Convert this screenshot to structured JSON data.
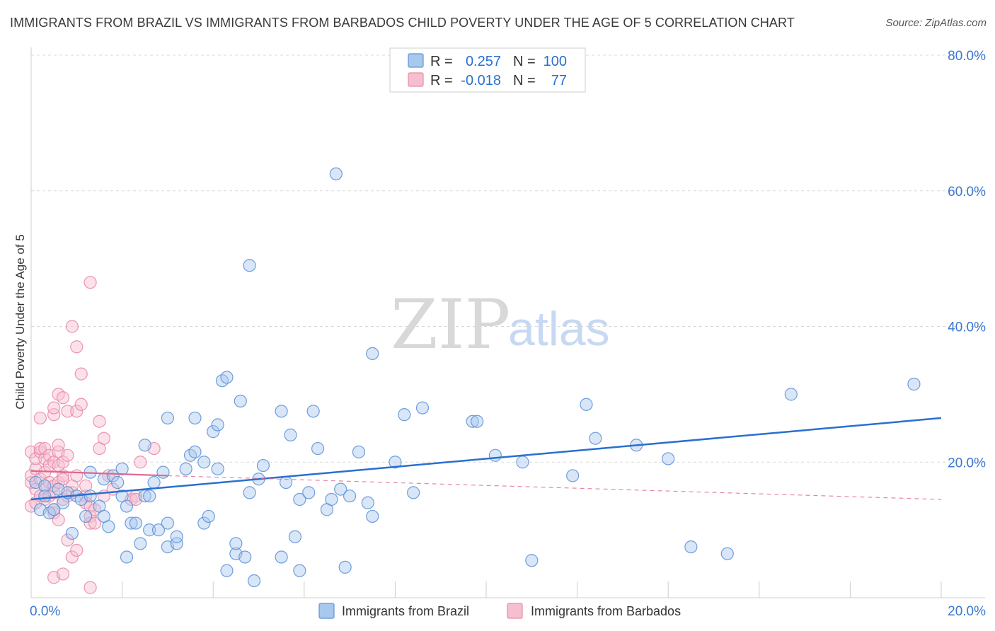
{
  "title": "IMMIGRANTS FROM BRAZIL VS IMMIGRANTS FROM BARBADOS CHILD POVERTY UNDER THE AGE OF 5 CORRELATION CHART",
  "source": "Source: ZipAtlas.com",
  "watermark": {
    "zip": "ZIP",
    "atlas": "atlas"
  },
  "legend": {
    "r_label": "R =",
    "n_label": "N =",
    "series": [
      {
        "name": "Immigrants from Brazil",
        "r": "0.257",
        "n": "100"
      },
      {
        "name": "Immigrants from Barbados",
        "r": "-0.018",
        "n": "77"
      }
    ]
  },
  "colors": {
    "brazil_fill": "#a9c8ee",
    "brazil_stroke": "#5f93d8",
    "brazil_line": "#2a6fd0",
    "barbados_fill": "#f6bfd0",
    "barbados_stroke": "#e98aa8",
    "barbados_line": "#e06690",
    "grid": "#d9d9d9",
    "tick_text": "#3b78d0"
  },
  "chart_data": {
    "type": "scatter",
    "title": "IMMIGRANTS FROM BRAZIL VS IMMIGRANTS FROM BARBADOS CHILD POVERTY UNDER THE AGE OF 5 CORRELATION CHART",
    "xlabel": "",
    "ylabel": "Child Poverty Under the Age of 5",
    "xlim": [
      0,
      20
    ],
    "ylim": [
      0,
      80
    ],
    "x_tick_labels": [
      "0.0%",
      "20.0%"
    ],
    "y_ticks": [
      20,
      40,
      60,
      80
    ],
    "y_tick_labels": [
      "20.0%",
      "40.0%",
      "60.0%",
      "80.0%"
    ],
    "grid": true,
    "legend_position": "top-center",
    "series": [
      {
        "name": "Immigrants from Brazil",
        "r": 0.257,
        "n": 100,
        "trend": {
          "x": [
            0,
            20
          ],
          "y": [
            14.5,
            26.5
          ],
          "style": "solid"
        },
        "points": [
          [
            0.1,
            17.0
          ],
          [
            0.2,
            13.0
          ],
          [
            0.3,
            16.5
          ],
          [
            0.4,
            12.5
          ],
          [
            0.5,
            13.0
          ],
          [
            0.6,
            16.0
          ],
          [
            0.7,
            14.0
          ],
          [
            0.8,
            15.5
          ],
          [
            0.9,
            9.5
          ],
          [
            1.0,
            15.0
          ],
          [
            1.1,
            14.5
          ],
          [
            1.2,
            12.0
          ],
          [
            1.3,
            15.0
          ],
          [
            1.3,
            18.5
          ],
          [
            1.5,
            13.5
          ],
          [
            1.6,
            17.5
          ],
          [
            1.7,
            10.5
          ],
          [
            1.8,
            18.0
          ],
          [
            1.9,
            17.0
          ],
          [
            2.0,
            15.0
          ],
          [
            2.0,
            19.0
          ],
          [
            2.1,
            6.0
          ],
          [
            2.2,
            11.0
          ],
          [
            2.3,
            11.0
          ],
          [
            2.4,
            8.0
          ],
          [
            2.5,
            15.0
          ],
          [
            2.5,
            22.5
          ],
          [
            2.6,
            15.0
          ],
          [
            2.6,
            10.0
          ],
          [
            2.7,
            17.0
          ],
          [
            2.8,
            10.0
          ],
          [
            2.9,
            18.5
          ],
          [
            3.0,
            11.0
          ],
          [
            3.0,
            26.5
          ],
          [
            3.0,
            7.5
          ],
          [
            3.2,
            8.0
          ],
          [
            3.2,
            9.0
          ],
          [
            3.4,
            19.0
          ],
          [
            3.5,
            21.0
          ],
          [
            3.6,
            21.5
          ],
          [
            3.6,
            26.5
          ],
          [
            3.8,
            20.0
          ],
          [
            3.8,
            11.0
          ],
          [
            3.9,
            12.0
          ],
          [
            4.0,
            24.5
          ],
          [
            4.1,
            25.5
          ],
          [
            4.1,
            19.0
          ],
          [
            4.2,
            32.0
          ],
          [
            4.3,
            4.0
          ],
          [
            4.3,
            32.5
          ],
          [
            4.5,
            6.5
          ],
          [
            4.5,
            8.0
          ],
          [
            4.6,
            29.0
          ],
          [
            4.7,
            6.0
          ],
          [
            4.8,
            15.5
          ],
          [
            4.8,
            49.0
          ],
          [
            4.9,
            2.5
          ],
          [
            5.0,
            17.5
          ],
          [
            5.1,
            19.5
          ],
          [
            5.5,
            6.0
          ],
          [
            5.5,
            27.5
          ],
          [
            5.6,
            17.0
          ],
          [
            5.7,
            24.0
          ],
          [
            5.8,
            9.0
          ],
          [
            5.9,
            4.0
          ],
          [
            5.9,
            14.5
          ],
          [
            6.1,
            15.5
          ],
          [
            6.2,
            27.5
          ],
          [
            6.3,
            22.0
          ],
          [
            6.5,
            13.0
          ],
          [
            6.6,
            14.5
          ],
          [
            6.7,
            62.5
          ],
          [
            6.8,
            16.0
          ],
          [
            6.9,
            4.5
          ],
          [
            7.0,
            15.0
          ],
          [
            7.2,
            21.5
          ],
          [
            7.4,
            14.0
          ],
          [
            7.5,
            12.0
          ],
          [
            7.5,
            36.0
          ],
          [
            8.0,
            20.0
          ],
          [
            8.2,
            27.0
          ],
          [
            8.4,
            15.5
          ],
          [
            8.6,
            28.0
          ],
          [
            9.7,
            26.0
          ],
          [
            9.8,
            26.0
          ],
          [
            10.2,
            21.0
          ],
          [
            10.8,
            20.0
          ],
          [
            11.0,
            5.5
          ],
          [
            11.9,
            18.0
          ],
          [
            12.2,
            28.5
          ],
          [
            12.4,
            23.5
          ],
          [
            13.3,
            22.5
          ],
          [
            14.0,
            20.5
          ],
          [
            14.5,
            7.5
          ],
          [
            15.3,
            6.5
          ],
          [
            16.7,
            30.0
          ],
          [
            19.4,
            31.5
          ],
          [
            0.3,
            15.0
          ],
          [
            1.6,
            12.0
          ],
          [
            2.1,
            13.5
          ]
        ]
      },
      {
        "name": "Immigrants from Barbados",
        "r": -0.018,
        "n": 77,
        "trend": {
          "x": [
            0,
            3
          ],
          "y": [
            18.7,
            18.0
          ],
          "style": "solid",
          "extension": {
            "x": [
              3,
              20
            ],
            "y": [
              18.0,
              14.5
            ],
            "style": "dashed"
          }
        },
        "points": [
          [
            0.0,
            13.5
          ],
          [
            0.0,
            17.0
          ],
          [
            0.0,
            18.0
          ],
          [
            0.0,
            21.5
          ],
          [
            0.1,
            14.0
          ],
          [
            0.1,
            16.0
          ],
          [
            0.1,
            19.0
          ],
          [
            0.1,
            20.5
          ],
          [
            0.2,
            15.0
          ],
          [
            0.2,
            17.5
          ],
          [
            0.2,
            21.5
          ],
          [
            0.2,
            26.5
          ],
          [
            0.2,
            22.0
          ],
          [
            0.3,
            14.5
          ],
          [
            0.3,
            16.5
          ],
          [
            0.3,
            18.5
          ],
          [
            0.3,
            20.5
          ],
          [
            0.3,
            22.0
          ],
          [
            0.4,
            15.0
          ],
          [
            0.4,
            17.0
          ],
          [
            0.4,
            19.5
          ],
          [
            0.4,
            21.0
          ],
          [
            0.5,
            15.5
          ],
          [
            0.5,
            12.5
          ],
          [
            0.5,
            13.0
          ],
          [
            0.5,
            16.5
          ],
          [
            0.5,
            20.0
          ],
          [
            0.5,
            27.0
          ],
          [
            0.5,
            28.0
          ],
          [
            0.5,
            3.0
          ],
          [
            0.6,
            17.0
          ],
          [
            0.6,
            21.5
          ],
          [
            0.6,
            22.5
          ],
          [
            0.6,
            19.5
          ],
          [
            0.6,
            30.0
          ],
          [
            0.6,
            11.5
          ],
          [
            0.7,
            3.5
          ],
          [
            0.7,
            14.5
          ],
          [
            0.7,
            18.0
          ],
          [
            0.7,
            20.0
          ],
          [
            0.7,
            29.5
          ],
          [
            0.7,
            17.5
          ],
          [
            0.8,
            15.0
          ],
          [
            0.8,
            21.0
          ],
          [
            0.8,
            27.5
          ],
          [
            0.8,
            8.5
          ],
          [
            0.9,
            6.0
          ],
          [
            0.9,
            15.5
          ],
          [
            0.9,
            16.5
          ],
          [
            0.9,
            40.0
          ],
          [
            1.0,
            7.0
          ],
          [
            1.0,
            37.0
          ],
          [
            1.0,
            27.5
          ],
          [
            1.0,
            18.0
          ],
          [
            1.1,
            28.5
          ],
          [
            1.1,
            33.0
          ],
          [
            1.2,
            15.0
          ],
          [
            1.2,
            16.5
          ],
          [
            1.2,
            14.0
          ],
          [
            1.3,
            13.5
          ],
          [
            1.3,
            12.0
          ],
          [
            1.3,
            46.5
          ],
          [
            1.3,
            11.0
          ],
          [
            1.3,
            1.5
          ],
          [
            1.4,
            13.0
          ],
          [
            1.4,
            11.0
          ],
          [
            1.5,
            22.0
          ],
          [
            1.5,
            26.0
          ],
          [
            1.6,
            23.5
          ],
          [
            1.6,
            15.0
          ],
          [
            1.7,
            18.0
          ],
          [
            1.8,
            16.0
          ],
          [
            2.2,
            14.5
          ],
          [
            2.3,
            15.0
          ],
          [
            2.3,
            14.5
          ],
          [
            2.4,
            20.0
          ],
          [
            2.7,
            22.0
          ]
        ]
      }
    ]
  }
}
